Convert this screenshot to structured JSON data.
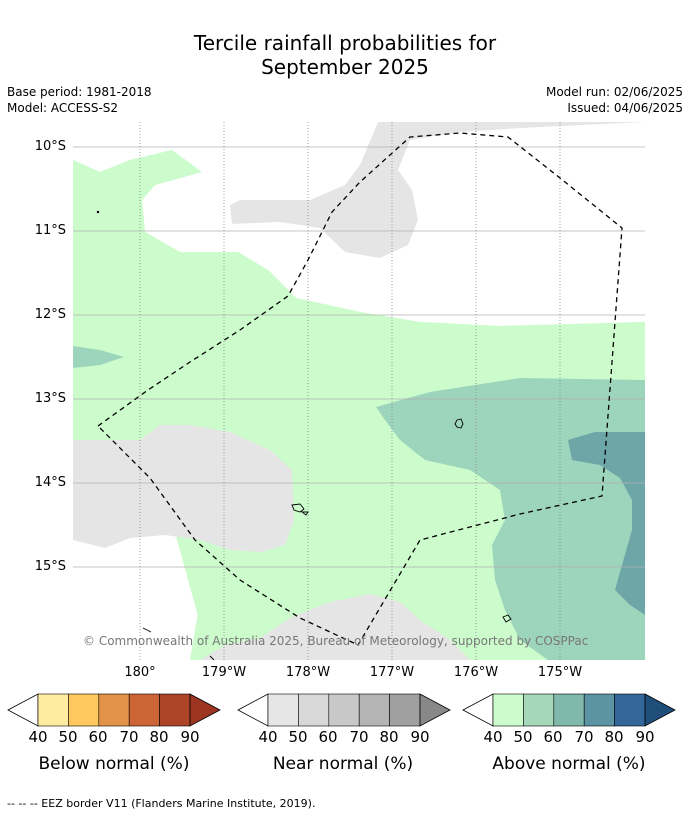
{
  "title_line1": "Tercile rainfall probabilities for",
  "title_line2": "September 2025",
  "base_period": "Base period: 1981-2018",
  "model": "Model: ACCESS-S2",
  "model_run": "Model run: 02/06/2025",
  "issued": "Issued: 04/06/2025",
  "lat_labels": [
    "10°S",
    "11°S",
    "12°S",
    "13°S",
    "14°S",
    "15°S"
  ],
  "lon_labels": [
    "180°",
    "179°W",
    "178°W",
    "177°W",
    "176°W",
    "175°W"
  ],
  "copyright": "© Commonwealth of Australia 2025, Bureau of Meteorology, supported by COSPPac",
  "colorbars": [
    {
      "title": "Below normal (%)",
      "ticks": [
        "40",
        "50",
        "60",
        "70",
        "80",
        "90"
      ],
      "low_color": "#ffffff",
      "colors": [
        "#feeda0",
        "#fec85f",
        "#e3924a",
        "#cc6435",
        "#ac4527"
      ],
      "high_color": "#9b3421"
    },
    {
      "title": "Near normal (%)",
      "ticks": [
        "40",
        "50",
        "60",
        "70",
        "80",
        "90"
      ],
      "low_color": "#ffffff",
      "colors": [
        "#e6e6e6",
        "#d8d8d8",
        "#c8c8c8",
        "#b4b4b4",
        "#a0a0a0"
      ],
      "high_color": "#888888"
    },
    {
      "title": "Above normal (%)",
      "ticks": [
        "40",
        "50",
        "60",
        "70",
        "80",
        "90"
      ],
      "low_color": "#ffffff",
      "colors": [
        "#ccfccc",
        "#a4d8b8",
        "#80b8ac",
        "#5c94a4",
        "#336699"
      ],
      "high_color": "#1f4e7a"
    }
  ],
  "footnote": "--  --  -- EEZ border V11 (Flanders Marine Institute, 2019).",
  "colors": {
    "near_normal_40": "#e5e5e5",
    "above_normal_40": "#ccfccc",
    "above_normal_50": "#9dd4bc",
    "above_normal_60": "#6ea6a8"
  }
}
